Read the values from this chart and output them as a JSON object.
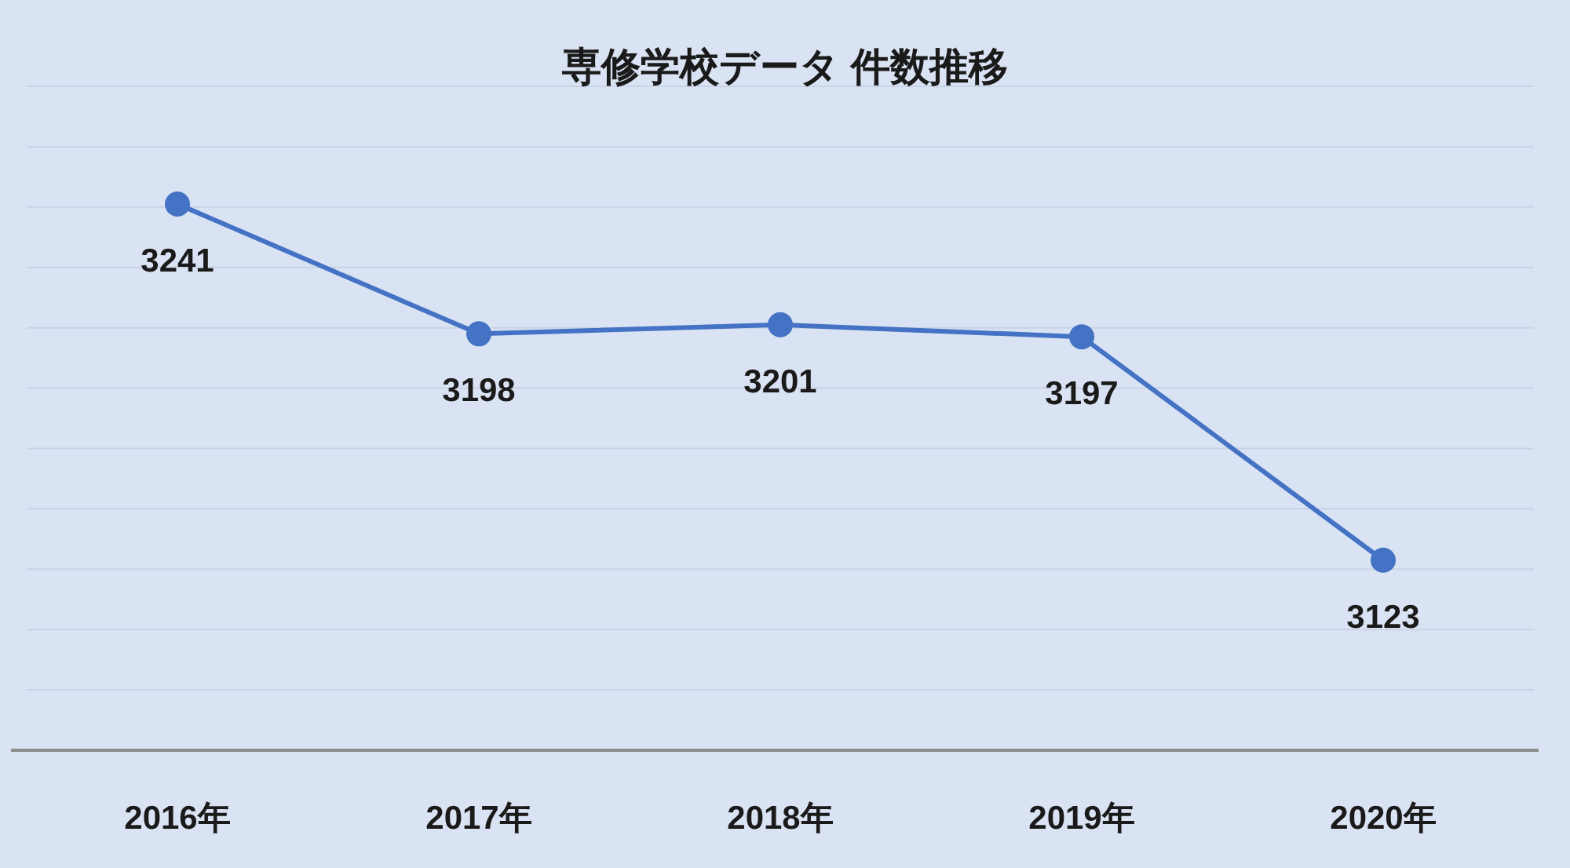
{
  "chart_data": {
    "type": "line",
    "title": "専修学校データ 件数推移",
    "categories": [
      "2016年",
      "2017年",
      "2018年",
      "2019年",
      "2020年"
    ],
    "series": [
      {
        "color": "#4472c4",
        "values": [
          3241,
          3198,
          3201,
          3197,
          3123
        ]
      }
    ],
    "ylim": [
      3060,
      3280
    ],
    "yticks": [
      {
        "value": 3060,
        "label": null
      },
      {
        "value": 3080,
        "label": null
      },
      {
        "value": 3100,
        "label": null
      },
      {
        "value": 3120,
        "label": null
      },
      {
        "value": 3140,
        "label": null
      },
      {
        "value": 3160,
        "label": null
      },
      {
        "value": 3180,
        "label": null
      },
      {
        "value": 3200,
        "label": null
      },
      {
        "value": 3220,
        "label": null
      },
      {
        "value": 3240,
        "label": null
      },
      {
        "value": 3260,
        "label": null
      },
      {
        "value": 3280,
        "label": null
      }
    ],
    "tick_labels": "x",
    "grid": "y",
    "marker": "circle",
    "data_labels": true
  }
}
